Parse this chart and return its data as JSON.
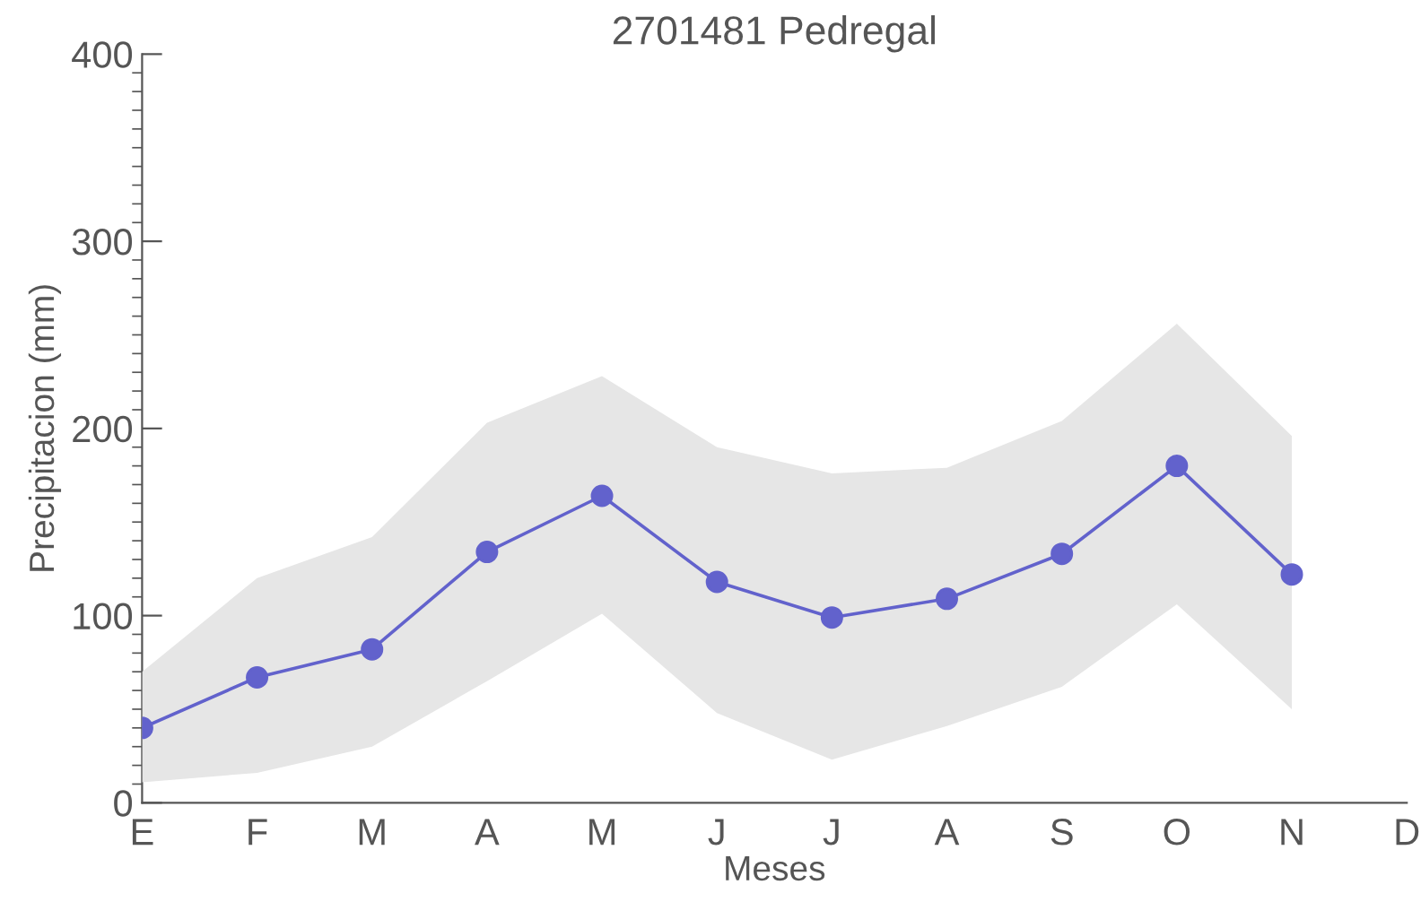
{
  "chart_data": {
    "type": "line",
    "title": "2701481 Pedregal",
    "xlabel": "Meses",
    "ylabel": "Precipitacion (mm)",
    "categories": [
      "E",
      "F",
      "M",
      "A",
      "M",
      "J",
      "J",
      "A",
      "S",
      "O",
      "N",
      "D"
    ],
    "series": [
      {
        "color": "#6262cc",
        "values": [
          40,
          67,
          82,
          134,
          164,
          118,
          99,
          109,
          133,
          180,
          122,
          null
        ],
        "lower": [
          11,
          16,
          30,
          65,
          101,
          48,
          23,
          41,
          62,
          106,
          50,
          null
        ],
        "upper": [
          70,
          120,
          142,
          203,
          228,
          190,
          176,
          179,
          204,
          256,
          196,
          null
        ]
      }
    ],
    "ylim": [
      0,
      400
    ],
    "yticks": [
      0,
      100,
      200,
      300,
      400
    ],
    "marker": "circle",
    "line_style": "solid",
    "grid": false,
    "legend": false
  }
}
